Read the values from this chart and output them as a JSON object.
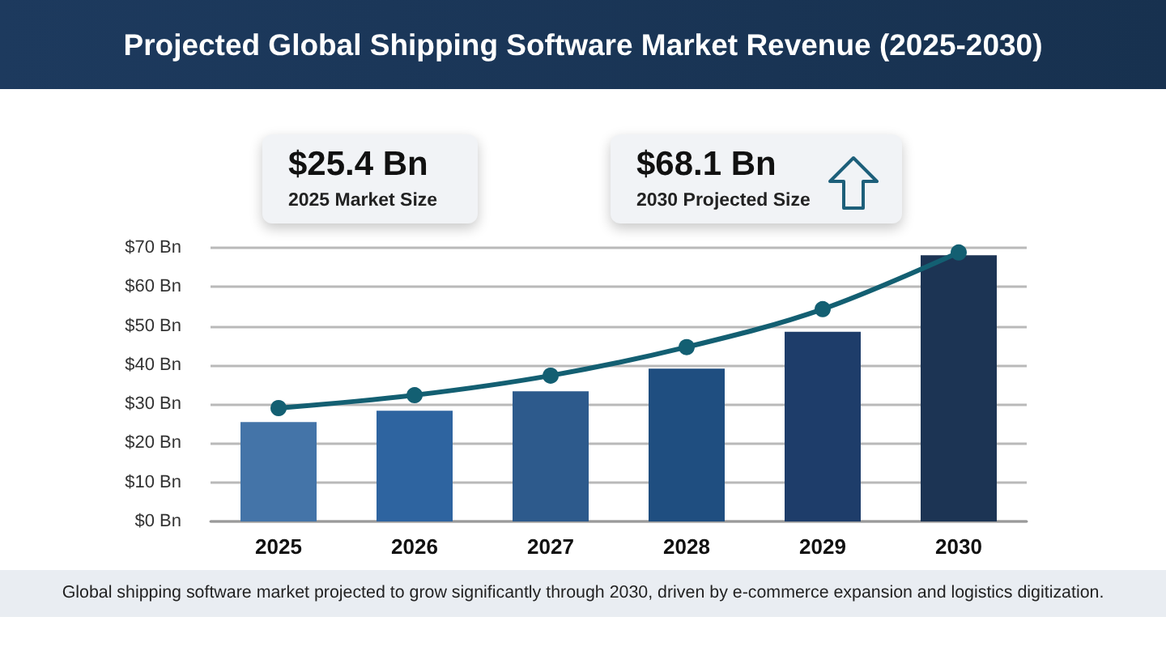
{
  "chart_data": {
    "type": "bar",
    "title": "Projected Global Shipping Software Market Revenue (2025-2030)",
    "categories": [
      "2025",
      "2026",
      "2027",
      "2028",
      "2029",
      "2030"
    ],
    "series": [
      {
        "colors": [
          "#4474a8",
          "#2e64a0",
          "#2d5a8c",
          "#1f4e80",
          "#1e3d6a",
          "#1c3454"
        ],
        "values": [
          25.4,
          28.3,
          33.3,
          39.1,
          48.5,
          68.1
        ]
      },
      {
        "type": "line",
        "color": "#135f72",
        "values": [
          29.0,
          32.3,
          37.3,
          44.6,
          54.3,
          68.8
        ]
      }
    ],
    "ylim": [
      0,
      70
    ],
    "yticks": [
      {
        "value": 0,
        "label": "$0 Bn"
      },
      {
        "value": 10,
        "label": "$10 Bn"
      },
      {
        "value": 20,
        "label": "$20 Bn"
      },
      {
        "value": 30,
        "label": "$30 Bn"
      },
      {
        "value": 40,
        "label": "$40 Bn"
      },
      {
        "value": 50,
        "label": "$50 Bn"
      },
      {
        "value": 60,
        "label": "$60 Bn"
      },
      {
        "value": 70,
        "label": "$70 Bn"
      }
    ],
    "grid": "y",
    "marker": "circle",
    "line_style": "solid",
    "annotations": [
      "$25.4 Bn",
      "2025 Market Size",
      "$68.1 Bn",
      "2030 Projected Size",
      "Global shipping software market projected to grow significantly through 2030, driven by e-commerce expansion and logistics digitization."
    ]
  }
}
